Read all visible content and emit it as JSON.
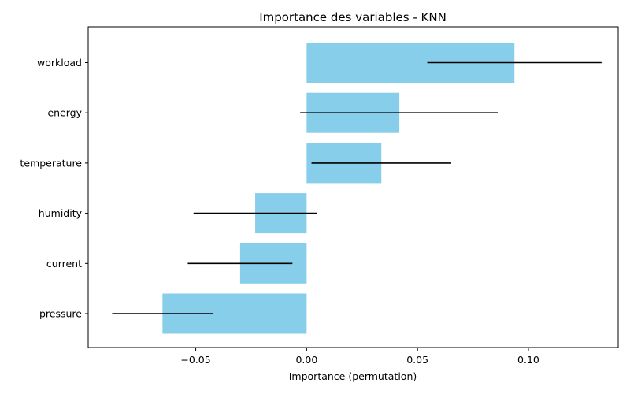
{
  "chart_data": {
    "type": "bar",
    "orientation": "horizontal",
    "title": "Importance des variables - KNN",
    "xlabel": "Importance (permutation)",
    "ylabel": "",
    "categories": [
      "workload",
      "energy",
      "temperature",
      "humidity",
      "current",
      "pressure"
    ],
    "values": [
      0.0937,
      0.0418,
      0.0337,
      -0.0232,
      -0.03,
      -0.065
    ],
    "errors": [
      0.0393,
      0.0447,
      0.0315,
      0.0278,
      0.0236,
      0.0227
    ],
    "xlim": [
      -0.0985,
      0.1405
    ],
    "xticks": [
      -0.05,
      0.0,
      0.05,
      0.1
    ],
    "xtick_labels": [
      "−0.05",
      "0.00",
      "0.05",
      "0.10"
    ],
    "grid": false,
    "bar_color": "#87CEEB",
    "error_color": "#000000"
  }
}
